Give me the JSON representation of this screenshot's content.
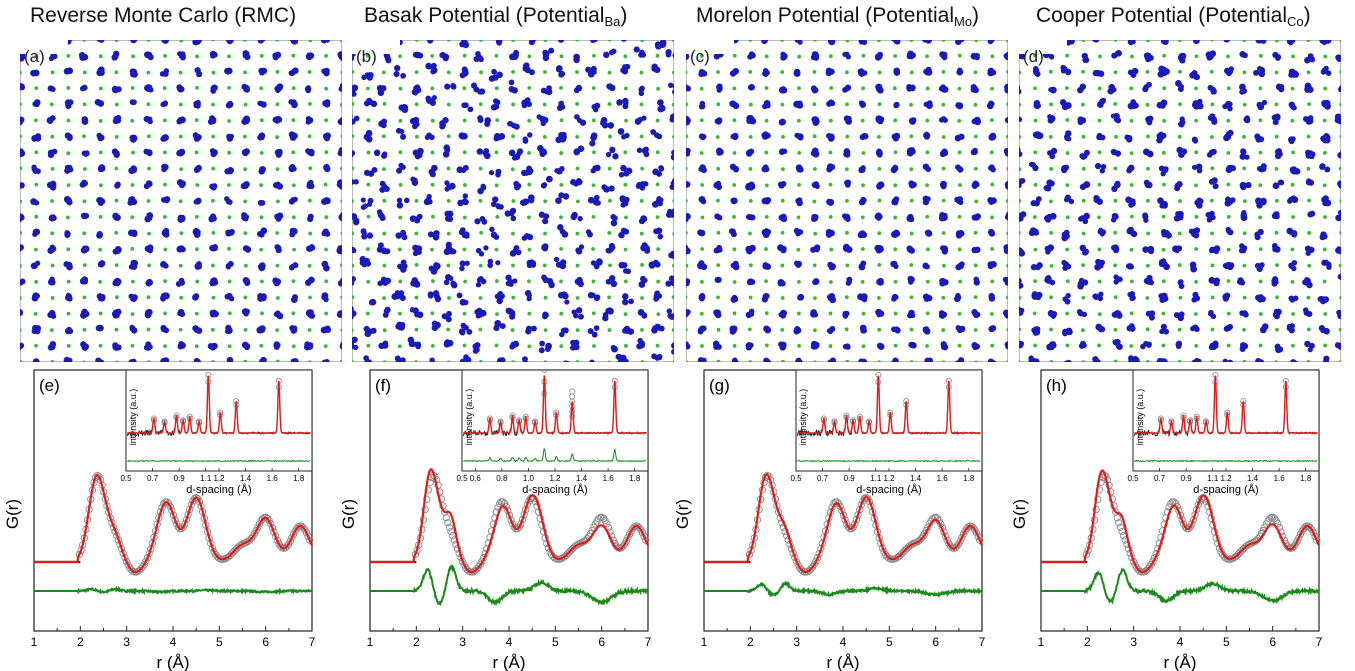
{
  "columns": [
    {
      "title": "Reverse Monte Carlo (RMC)",
      "title_sub": "",
      "title_end": "",
      "struct_label": "(a)",
      "gr_label": "(e)"
    },
    {
      "title": "Basak Potential (Potential",
      "title_sub": "Ba",
      "title_end": ")",
      "struct_label": "(b)",
      "gr_label": "(f)"
    },
    {
      "title": "Morelon Potential (Potential",
      "title_sub": "Mo",
      "title_end": ")",
      "struct_label": "(c)",
      "gr_label": "(g)"
    },
    {
      "title": "Cooper Potential (Potential",
      "title_sub": "Co",
      "title_end": ")",
      "struct_label": "(d)",
      "gr_label": "(h)"
    }
  ],
  "colors": {
    "uranium": "#1a1ab8",
    "oxygen": "#33bb33",
    "data": "#888888",
    "fit": "#e11b1b",
    "difference": "#1a8a1a"
  },
  "chart_data": {
    "type": "line",
    "main": {
      "xlabel": "r (Å)",
      "ylabel": "G(r)",
      "xlim": [
        1,
        7
      ],
      "xticks": [
        "1",
        "2",
        "3",
        "4",
        "5",
        "6",
        "7"
      ],
      "peaks_r": [
        2.35,
        2.7,
        3.85,
        4.5,
        5.5,
        6.0,
        6.75
      ],
      "peak_heights_data": [
        1.0,
        0.35,
        0.75,
        0.8,
        0.2,
        0.55,
        0.45
      ],
      "fit_quality": [
        0.02,
        0.25,
        0.08,
        0.22
      ]
    },
    "inset": {
      "xlabel": "d-spacing (Å)",
      "ylabel": "intensity (a.u.)",
      "xlim": [
        0.5,
        1.9
      ],
      "xticks": [
        "0.5",
        "0.7",
        "0.9",
        "1.1",
        "1.2",
        "1.4",
        "1.6",
        "1.8"
      ],
      "xticks_alt": [
        "0.5",
        "0.6",
        "0.8",
        "1.0",
        "1.2",
        "1.4",
        "1.6",
        "1.8"
      ],
      "bragg_d": [
        0.71,
        0.79,
        0.88,
        0.93,
        0.98,
        1.05,
        1.12,
        1.21,
        1.33,
        1.65
      ],
      "bragg_h": [
        0.25,
        0.2,
        0.3,
        0.22,
        0.28,
        0.2,
        1.0,
        0.35,
        0.55,
        0.9
      ]
    }
  }
}
